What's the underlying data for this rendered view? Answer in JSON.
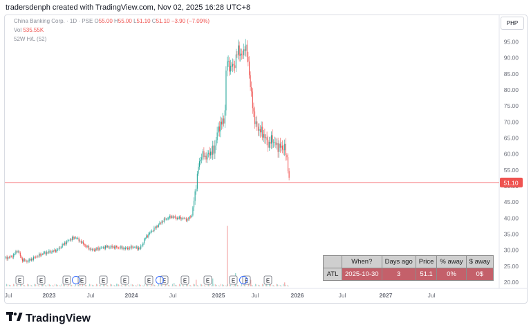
{
  "header": {
    "text": "tradersdenph created with TradingView.com, Nov 02, 2025 16:28 UTC+8"
  },
  "legend": {
    "symbol": "China Banking Corp. · 1D · PSE",
    "o_label": "O",
    "o": "55.00",
    "h_label": "H",
    "h": "55.00",
    "l_label": "L",
    "l": "51.10",
    "c_label": "C",
    "c": "51.10",
    "change": "−3.90 (−7.09%)",
    "vol_label": "Vol",
    "vol": "535.55K",
    "indicator": "52W H/L (52)"
  },
  "currency": "PHP",
  "last_price_label": "51.10",
  "colors": {
    "up": "#26a69a",
    "down": "#ef5350",
    "line": "#f77c80",
    "vol_up": "#9fd8d1",
    "vol_down": "#f5b3b2"
  },
  "chart_data": {
    "type": "candlestick",
    "y_ticks": [
      "95.00",
      "90.00",
      "85.00",
      "80.00",
      "75.00",
      "70.00",
      "65.00",
      "60.00",
      "55.00",
      "50.00",
      "45.00",
      "40.00",
      "35.00",
      "30.00",
      "25.00",
      "20.00"
    ],
    "x_ticks": [
      "Jul",
      "2023",
      "Jul",
      "2024",
      "Jul",
      "2025",
      "Jul",
      "2026",
      "Jul",
      "2027",
      "Jul"
    ],
    "ylim": [
      19,
      100
    ],
    "last_price": 51.1,
    "price_path": [
      [
        0,
        27.5
      ],
      [
        10,
        28
      ],
      [
        18,
        30
      ],
      [
        24,
        27
      ],
      [
        32,
        26.5
      ],
      [
        45,
        28
      ],
      [
        55,
        29
      ],
      [
        65,
        29.5
      ],
      [
        75,
        30
      ],
      [
        85,
        32
      ],
      [
        95,
        33.5
      ],
      [
        102,
        34
      ],
      [
        110,
        32.5
      ],
      [
        118,
        31
      ],
      [
        126,
        30
      ],
      [
        135,
        30.5
      ],
      [
        145,
        31
      ],
      [
        155,
        31
      ],
      [
        165,
        30.8
      ],
      [
        175,
        30.5
      ],
      [
        185,
        31
      ],
      [
        195,
        30.5
      ],
      [
        203,
        34
      ],
      [
        212,
        36
      ],
      [
        222,
        38
      ],
      [
        230,
        39.5
      ],
      [
        240,
        40.5
      ],
      [
        248,
        40
      ],
      [
        256,
        40
      ],
      [
        264,
        39.5
      ],
      [
        270,
        41
      ],
      [
        276,
        50
      ],
      [
        280,
        57
      ],
      [
        285,
        60
      ],
      [
        290,
        59
      ],
      [
        296,
        60.5
      ],
      [
        302,
        61
      ],
      [
        306,
        66
      ],
      [
        312,
        70
      ],
      [
        316,
        69.5
      ],
      [
        318,
        75
      ],
      [
        320,
        90
      ],
      [
        322,
        88
      ],
      [
        326,
        87
      ],
      [
        332,
        88
      ],
      [
        337,
        93
      ],
      [
        342,
        90
      ],
      [
        347,
        94
      ],
      [
        352,
        88
      ],
      [
        355,
        80
      ],
      [
        358,
        75
      ],
      [
        362,
        69
      ],
      [
        366,
        68
      ],
      [
        370,
        67
      ],
      [
        374,
        66
      ],
      [
        378,
        64
      ],
      [
        382,
        63
      ],
      [
        386,
        65
      ],
      [
        390,
        63
      ],
      [
        394,
        62.5
      ],
      [
        398,
        62
      ],
      [
        404,
        62
      ],
      [
        408,
        58
      ],
      [
        411,
        51.1
      ]
    ],
    "volume_spikes": [
      [
        52,
        0.06
      ],
      [
        108,
        0.05
      ],
      [
        161,
        0.04
      ],
      [
        212,
        0.06
      ],
      [
        244,
        0.05
      ],
      [
        276,
        0.1
      ],
      [
        300,
        0.12
      ],
      [
        321,
        0.92
      ],
      [
        333,
        0.2
      ],
      [
        355,
        0.1
      ],
      [
        378,
        0.08
      ],
      [
        404,
        0.06
      ]
    ],
    "earnings_markers": [
      21,
      52,
      89,
      111,
      142,
      173,
      208,
      230,
      260,
      293,
      330,
      349,
      380
    ],
    "dividend_markers": [
      103,
      224,
      345
    ],
    "table": {
      "headers": [
        "When?",
        "Days ago",
        "Price",
        "% away",
        "$ away"
      ],
      "row_label": "ATL",
      "row": [
        "2025-10-30",
        "3",
        "51.1",
        "0%",
        "0$"
      ]
    }
  },
  "logo": {
    "text": "TradingView"
  }
}
